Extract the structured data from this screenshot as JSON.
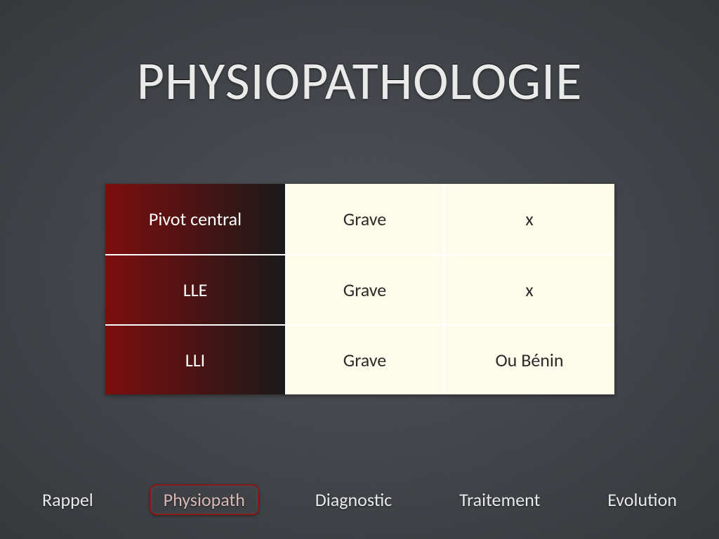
{
  "title": "PHYSIOPATHOLOGIE",
  "table": {
    "background": "#fdfbe9",
    "row_border": "#ffffff",
    "first_col_gradient": {
      "from": "#7d0e0e",
      "to": "#1a1a1a"
    },
    "first_col_text_color": "#ffffff",
    "cell_text_color": "#2a2a2a",
    "font_size": 26,
    "rows": [
      {
        "c1": "Pivot central",
        "c2": "Grave",
        "c3": "x"
      },
      {
        "c1": "LLE",
        "c2": "Grave",
        "c3": "x"
      },
      {
        "c1": "LLI",
        "c2": "Grave",
        "c3": "Ou Bénin"
      }
    ]
  },
  "nav": {
    "items": [
      {
        "label": "Rappel",
        "active": false
      },
      {
        "label": "Physiopath",
        "active": true
      },
      {
        "label": "Diagnostic",
        "active": false
      },
      {
        "label": "Traitement",
        "active": false
      },
      {
        "label": "Evolution",
        "active": false
      }
    ],
    "active_border_color": "#8b1a1a",
    "active_text_color": "#d9b8b8",
    "text_color": "#eaeaea",
    "font_size": 26
  },
  "background_color": "#474b50",
  "title_color": "#eaeaea",
  "title_fontsize": 76
}
